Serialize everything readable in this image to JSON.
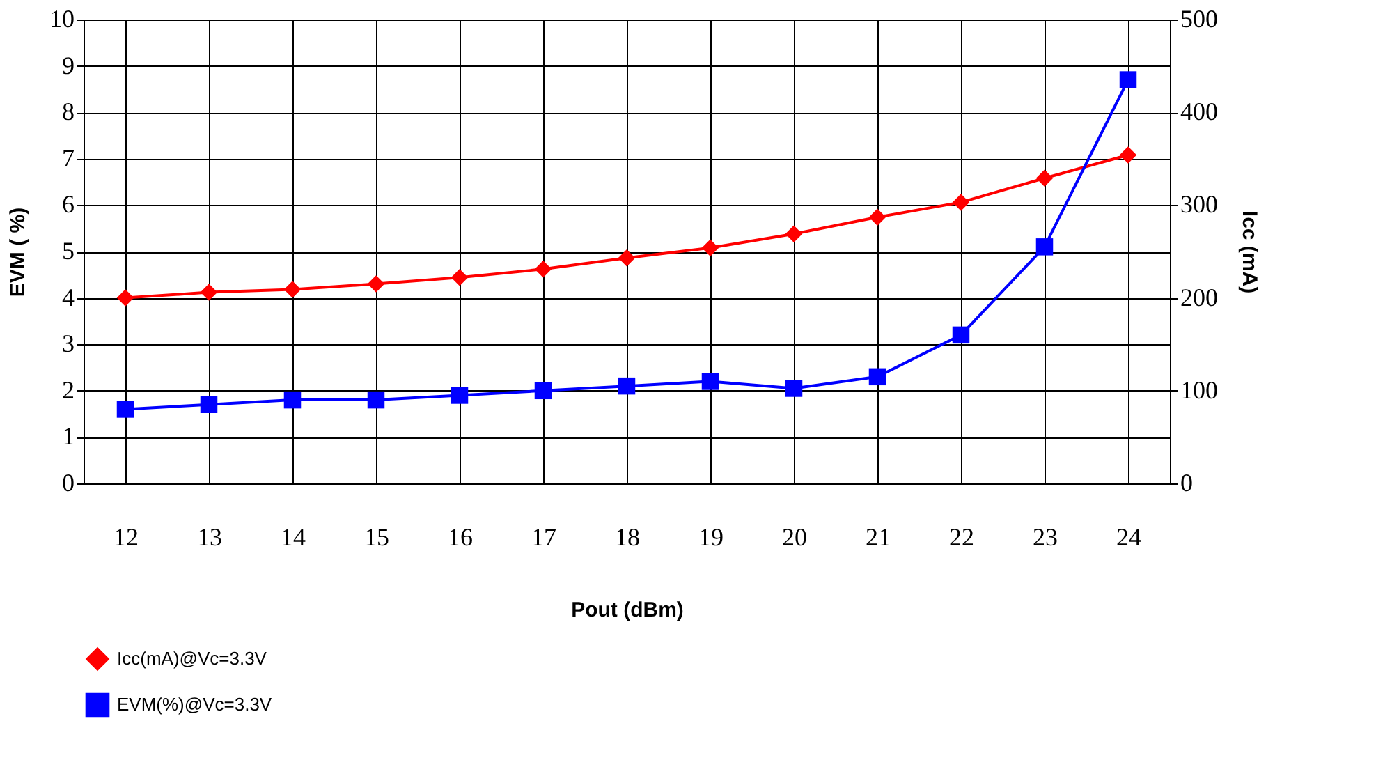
{
  "chart_data": {
    "type": "line",
    "xlabel": "Pout (dBm)",
    "ylabel": "EVM ( %)",
    "y2label": "Icc (mA)",
    "categories": [
      "12",
      "13",
      "14",
      "15",
      "16",
      "17",
      "18",
      "19",
      "20",
      "21",
      "22",
      "23",
      "24"
    ],
    "series": [
      {
        "name": "Icc(mA)@Vc=3.3V",
        "color": "#ff0000",
        "axis": "y2",
        "marker": "diamond",
        "values": [
          200,
          206,
          209,
          215,
          222,
          231,
          243,
          254,
          269,
          287,
          303,
          329,
          354
        ]
      },
      {
        "name": "EVM(%)@Vc=3.3V",
        "color": "#0000ff",
        "axis": "y",
        "marker": "square",
        "values": [
          1.6,
          1.7,
          1.8,
          1.8,
          1.9,
          2.0,
          2.1,
          2.2,
          2.05,
          2.3,
          3.2,
          5.1,
          8.7
        ]
      }
    ],
    "ylim": [
      0,
      10
    ],
    "yticks": [
      0,
      1,
      2,
      3,
      4,
      5,
      6,
      7,
      8,
      9,
      10
    ],
    "y2lim": [
      0,
      500
    ],
    "y2ticks": [
      0,
      100,
      200,
      300,
      400,
      500
    ],
    "grid": true,
    "legend": "bottom",
    "line_style": "solid"
  }
}
